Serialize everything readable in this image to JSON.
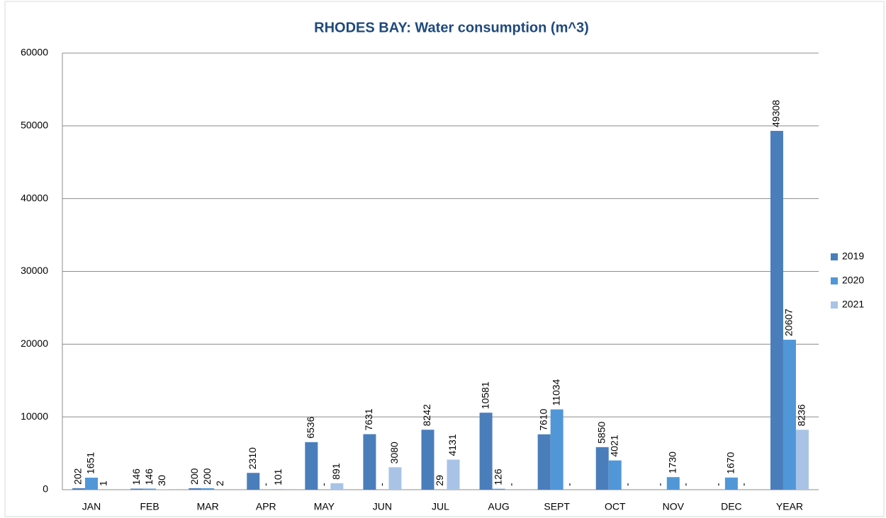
{
  "chart_data": {
    "type": "bar",
    "title": "RHODES BAY: Water consumption (m^3)",
    "categories": [
      "JAN",
      "FEB",
      "MAR",
      "APR",
      "MAY",
      "JUN",
      "JUL",
      "AUG",
      "SEPT",
      "OCT",
      "NOV",
      "DEC",
      "YEAR"
    ],
    "series": [
      {
        "name": "2019",
        "color": "#4a7ebb",
        "values": [
          202,
          146,
          200,
          2310,
          6536,
          7631,
          8242,
          10581,
          7610,
          5850,
          0,
          0,
          49308
        ],
        "value_labels": [
          "202",
          "146",
          "200",
          "2310",
          "6536",
          "7631",
          "8242",
          "10581",
          "7610",
          "5850",
          "-",
          "-",
          "49308"
        ]
      },
      {
        "name": "2020",
        "color": "#5197d8",
        "values": [
          1651,
          146,
          200,
          0,
          0,
          0,
          29,
          126,
          11034,
          4021,
          1730,
          1670,
          20607
        ],
        "value_labels": [
          "1651",
          "146",
          "200",
          "-",
          "-",
          "-",
          "29",
          "126",
          "11034",
          "4021",
          "1730",
          "1670",
          "20607"
        ]
      },
      {
        "name": "2021",
        "color": "#a8c3e6",
        "values": [
          1,
          30,
          2,
          101,
          891,
          3080,
          4131,
          0,
          0,
          0,
          0,
          0,
          8236
        ],
        "value_labels": [
          "1",
          "30",
          "2",
          "101",
          "891",
          "3080",
          "4131",
          "-",
          "-",
          "-",
          "-",
          "-",
          "8236"
        ]
      }
    ],
    "ylim": [
      0,
      60000
    ],
    "yticks": [
      0,
      10000,
      20000,
      30000,
      40000,
      50000,
      60000
    ],
    "grid": true,
    "legend": "right"
  }
}
